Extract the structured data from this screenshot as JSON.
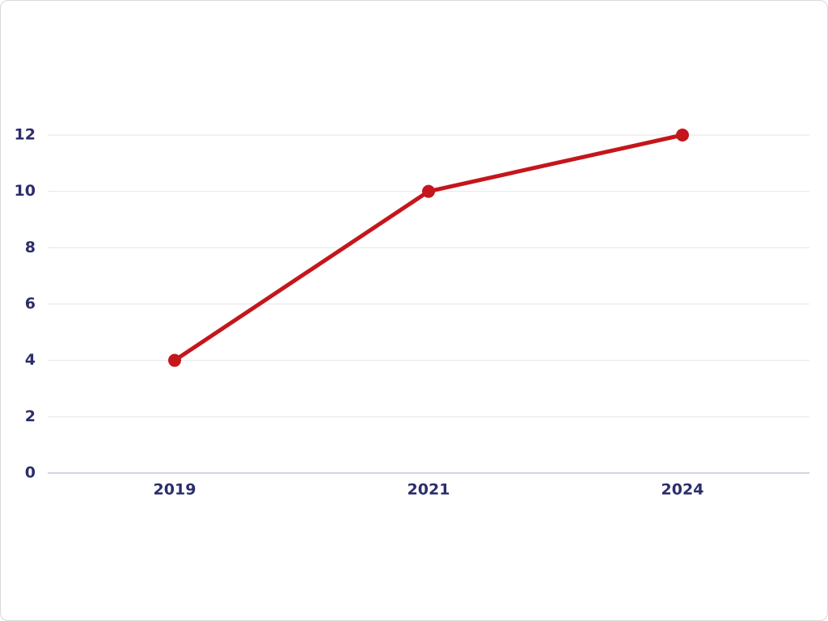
{
  "chart_data": {
    "type": "line",
    "categories": [
      "2019",
      "2021",
      "2024"
    ],
    "values": [
      4,
      10,
      12
    ],
    "color": "#c4161c",
    "ylim": [
      0,
      12
    ],
    "yticks": [
      0,
      2,
      4,
      6,
      8,
      10,
      12
    ],
    "grid": true
  }
}
